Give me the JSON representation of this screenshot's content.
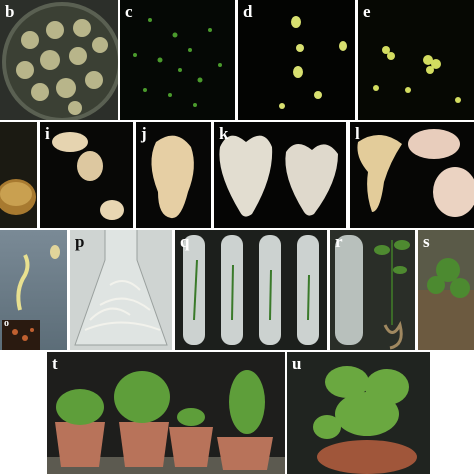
{
  "panels": [
    {
      "label": "b"
    },
    {
      "label": "c"
    },
    {
      "label": "d"
    },
    {
      "label": "e"
    },
    {
      "label": "i"
    },
    {
      "label": "j"
    },
    {
      "label": "k"
    },
    {
      "label": "l"
    },
    {
      "label": "p"
    },
    {
      "label": "q"
    },
    {
      "label": "r"
    },
    {
      "label": "s"
    },
    {
      "label": "t"
    },
    {
      "label": "u"
    }
  ],
  "inset": {
    "label": "o"
  }
}
